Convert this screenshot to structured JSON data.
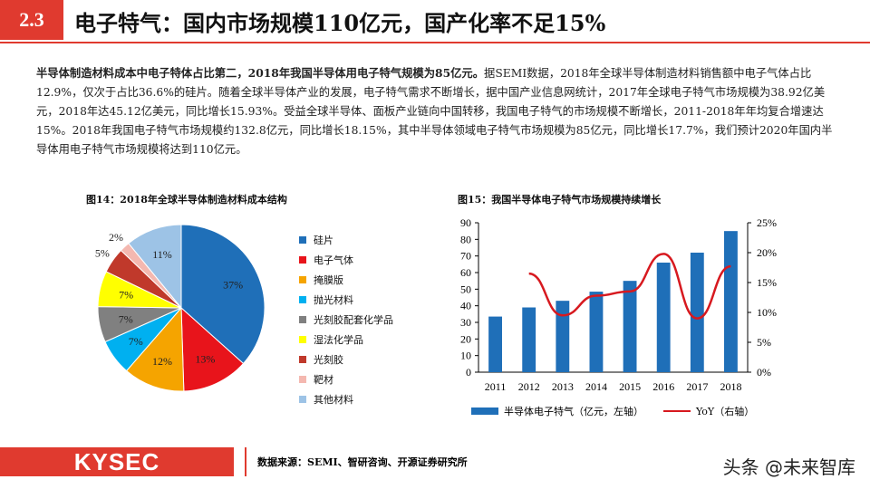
{
  "header": {
    "section": "2.3",
    "title": "电子特气：国内市场规模110亿元，国产化率不足15%"
  },
  "paragraph": {
    "bold": "半导体制造材料成本中电子特体占比第二，2018年我国半导体用电子特气规模为85亿元。",
    "text": "据SEMI数据，2018年全球半导体制造材料销售额中电子气体占比12.9%，仅次于占比36.6%的硅片。随着全球半导体产业的发展，电子特气需求不断增长，据中国产业信息网统计，2017年全球电子特气市场规模为38.92亿美元，2018年达45.12亿美元，同比增长15.93%。受益全球半导体、面板产业链向中国转移，我国电子特气的市场规模不断增长，2011-2018年年均复合增速达15%。2018年我国电子特气市场规模约132.8亿元，同比增长18.15%，其中半导体领域电子特气市场规模为85亿元，同比增长17.7%，我们预计2020年国内半导体用电子特气市场规模将达到110亿元。"
  },
  "chart_data": [
    {
      "type": "pie",
      "title": "图14：2018年全球半导体制造材料成本结构",
      "labels": [
        "硅片",
        "电子气体",
        "掩膜版",
        "抛光材料",
        "光刻胶配套化学品",
        "湿法化学品",
        "光刻胶",
        "靶材",
        "其他材料"
      ],
      "values": [
        37,
        13,
        12,
        7,
        7,
        7,
        5,
        2,
        11
      ],
      "value_labels": [
        "37%",
        "13%",
        "12%",
        "7%",
        "7%",
        "7%",
        "5%",
        "2%",
        "11%"
      ],
      "colors": [
        "#1f6fb8",
        "#e8141b",
        "#f5a400",
        "#00b0f0",
        "#808080",
        "#ffff00",
        "#c0392b",
        "#f4b8b0",
        "#9dc3e6"
      ],
      "legend": "right"
    },
    {
      "type": "bar+line",
      "title": "图15：我国半导体电子特气市场规模持续增长",
      "categories": [
        "2011",
        "2012",
        "2013",
        "2014",
        "2015",
        "2016",
        "2017",
        "2018"
      ],
      "series": [
        {
          "name": "半导体电子特气（亿元，左轴）",
          "type": "bar",
          "color": "#1f6fb8",
          "values": [
            33.5,
            39,
            43,
            48.5,
            55,
            66,
            72,
            85
          ]
        },
        {
          "name": "YoY（右轴）",
          "type": "line",
          "color": "#d7191f",
          "values": [
            null,
            16.5,
            9.5,
            12.8,
            13.5,
            19.8,
            9.0,
            17.7
          ]
        }
      ],
      "yleft": {
        "ticks": [
          "0",
          "10",
          "20",
          "30",
          "40",
          "50",
          "60",
          "70",
          "80",
          "90"
        ],
        "lim": [
          0,
          90
        ]
      },
      "yright": {
        "ticks": [
          "0%",
          "5%",
          "10%",
          "15%",
          "20%",
          "25%"
        ],
        "lim": [
          0,
          25
        ]
      },
      "legend": "bottom"
    }
  ],
  "footer": {
    "logo": "KYSEC",
    "source": "数据来源：SEMI、智研咨询、开源证券研究所",
    "watermark": "头条 @未来智库"
  }
}
